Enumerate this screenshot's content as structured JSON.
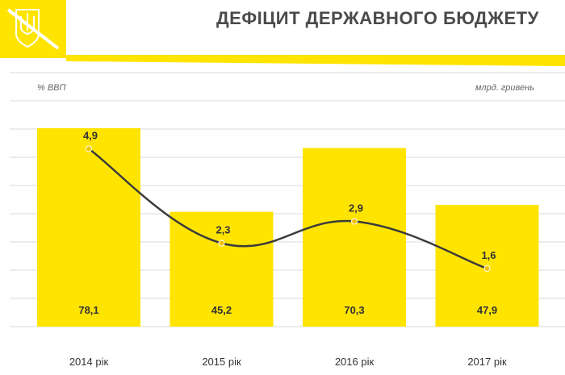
{
  "header": {
    "title": "ДЕФІЦИТ ДЕРЖАВНОГО БЮДЖЕТУ"
  },
  "colors": {
    "accent": "#FFE400",
    "line": "#3a3a3a",
    "grid": "#d9d9d9",
    "text": "#333333"
  },
  "chart_data": {
    "type": "bar",
    "categories": [
      "2014 рік",
      "2015 рік",
      "2016 рік",
      "2017 рік"
    ],
    "series": [
      {
        "type": "bar",
        "unit_label": "млрд. гривень",
        "values": [
          78.1,
          45.2,
          70.3,
          47.9
        ],
        "labels": [
          "78,1",
          "45,2",
          "70,3",
          "47,9"
        ]
      },
      {
        "type": "line",
        "unit_label": "% ВВП",
        "values": [
          4.9,
          2.3,
          2.9,
          1.6
        ],
        "labels": [
          "4,9",
          "2,3",
          "2,9",
          "1,6"
        ]
      }
    ],
    "ylabel_left": "% ВВП",
    "ylabel_right": "млрд. гривень",
    "grid": true,
    "legend": "none"
  }
}
